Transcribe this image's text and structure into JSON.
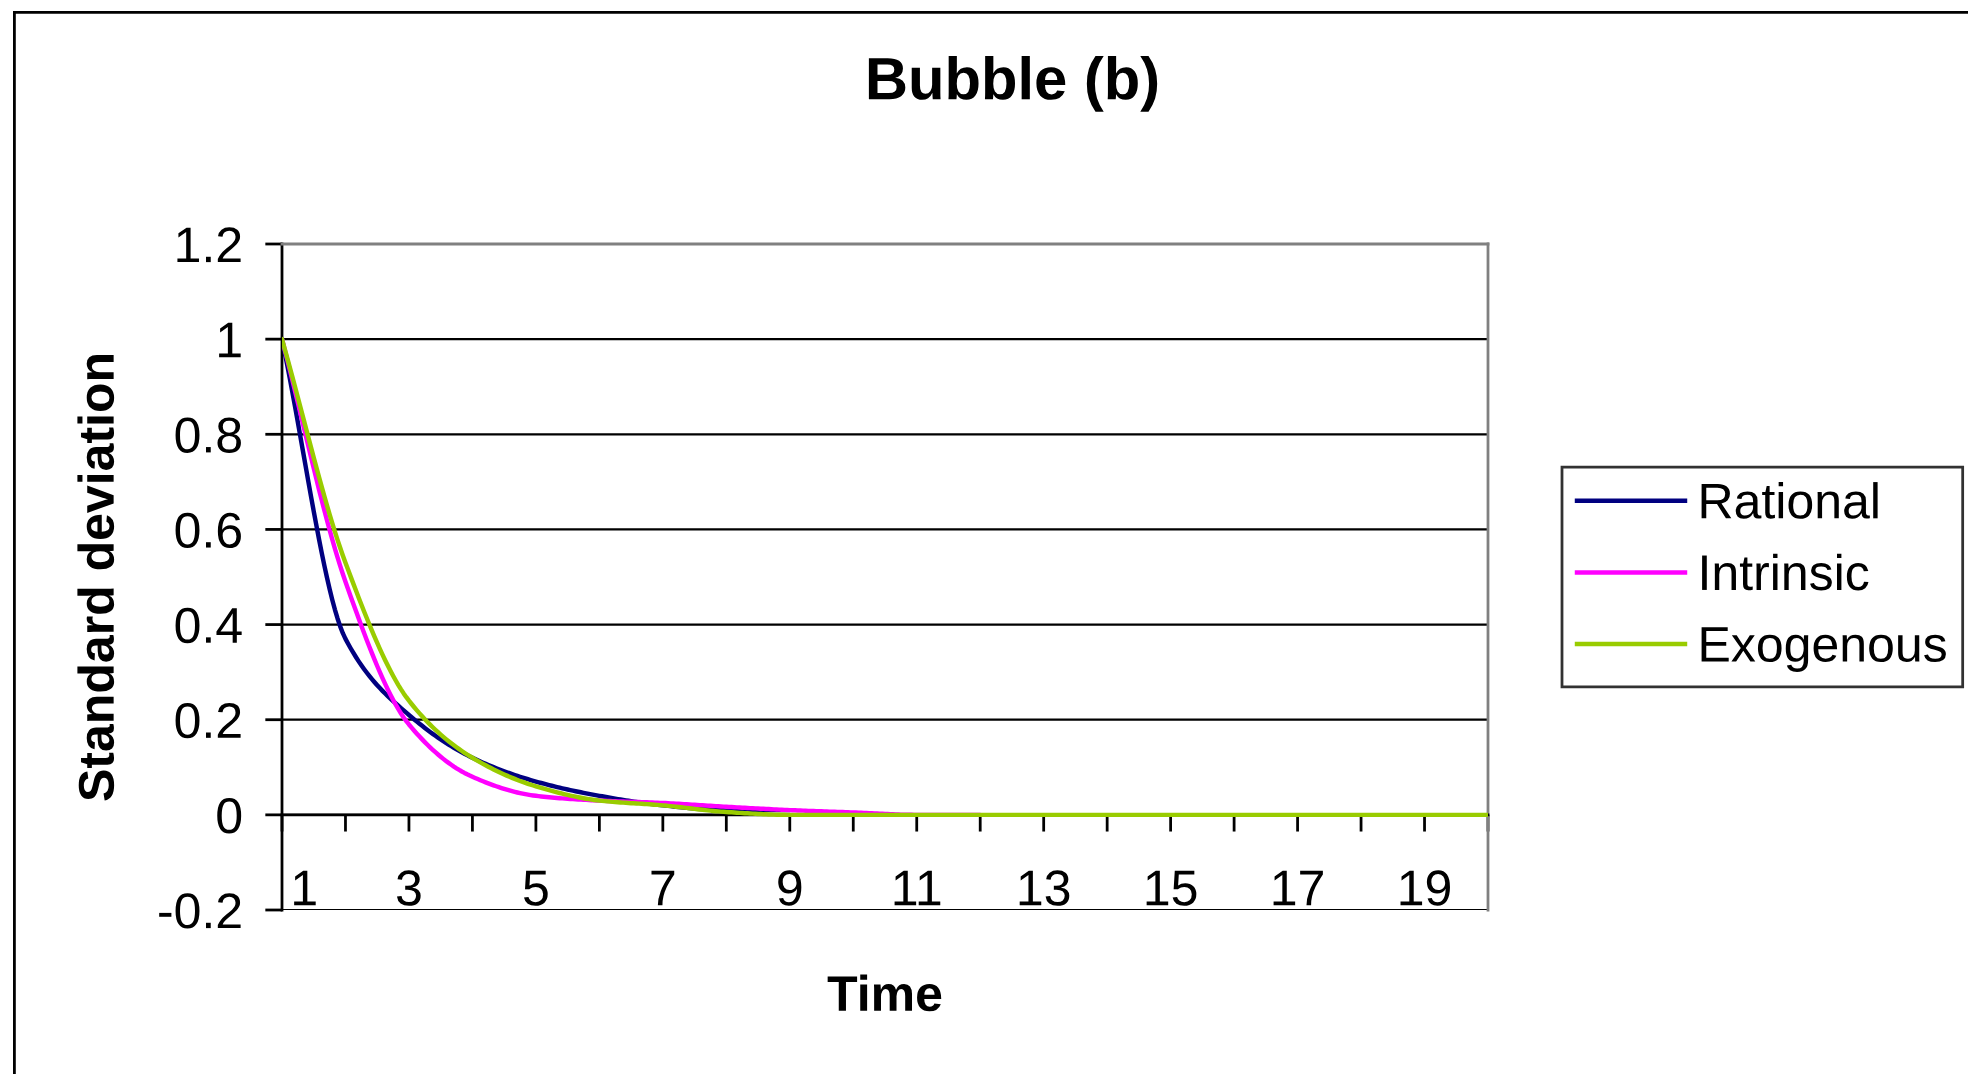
{
  "chart_data": {
    "type": "line",
    "title": "Bubble (b)",
    "xlabel": "Time",
    "ylabel": "Standard deviation",
    "x": [
      1,
      2,
      3,
      4,
      5,
      6,
      7,
      8,
      9,
      10,
      11,
      12,
      13,
      14,
      15,
      16,
      17,
      18,
      19,
      20
    ],
    "series": [
      {
        "name": "Rational",
        "color": "#000080",
        "values": [
          1,
          0.37,
          0.21,
          0.12,
          0.07,
          0.04,
          0.02,
          0.01,
          0.01,
          null,
          null,
          null,
          null,
          null,
          null,
          null,
          null,
          null,
          null,
          null
        ]
      },
      {
        "name": "Intrinsic",
        "color": "#ff00ff",
        "values": [
          1,
          0.49,
          0.19,
          0.08,
          0.04,
          0.03,
          0.025,
          0.017,
          0.01,
          0.005,
          0,
          0,
          null,
          null,
          null,
          null,
          null,
          null,
          null,
          null
        ]
      },
      {
        "name": "Exogenous",
        "color": "#99cc00",
        "values": [
          1,
          0.53,
          0.24,
          0.12,
          0.06,
          0.03,
          0.02,
          0.006,
          0,
          0,
          0,
          0,
          0,
          0,
          0,
          0,
          0,
          0,
          0,
          0
        ]
      }
    ],
    "xlim": [
      1,
      20
    ],
    "xticks": [
      1,
      {
        "value": 2,
        "label": null
      },
      3,
      {
        "value": 4,
        "label": null
      },
      5,
      {
        "value": 6,
        "label": null
      },
      7,
      {
        "value": 8,
        "label": null
      },
      9,
      {
        "value": 10,
        "label": null
      },
      11,
      {
        "value": 12,
        "label": null
      },
      13,
      {
        "value": 14,
        "label": null
      },
      15,
      {
        "value": 16,
        "label": null
      },
      17,
      {
        "value": 18,
        "label": null
      },
      19,
      {
        "value": 20,
        "label": null
      }
    ],
    "ylim": [
      -0.2,
      1.2
    ],
    "yticks": [
      -0.2,
      0,
      0.2,
      0.4,
      0.6,
      0.8,
      1,
      1.2
    ],
    "grid": "y",
    "legend": "right"
  }
}
